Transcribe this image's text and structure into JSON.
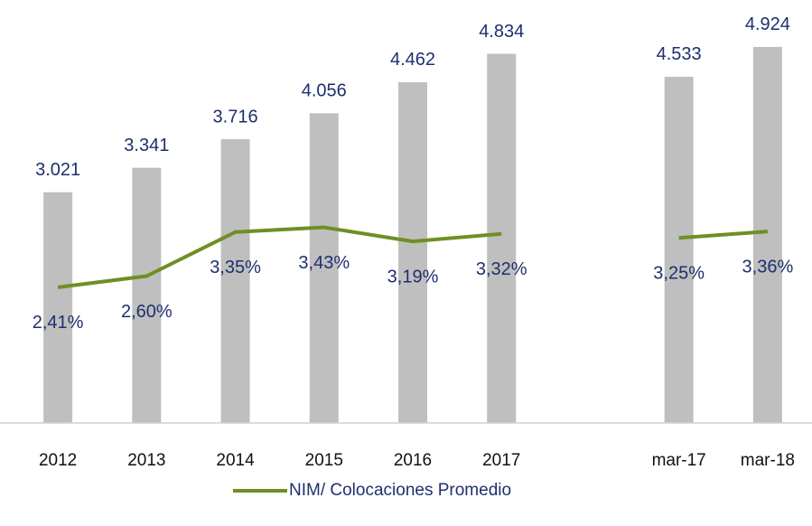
{
  "chart_data": {
    "type": "bar-line",
    "categories": [
      "2012",
      "2013",
      "2014",
      "2015",
      "2016",
      "2017",
      null,
      "mar-17",
      "mar-18"
    ],
    "series": [
      {
        "type": "bar",
        "color": "#bfbfbf",
        "values": [
          3021,
          3341,
          3716,
          4056,
          4462,
          4834,
          null,
          4533,
          4924
        ],
        "value_labels": [
          "3.021",
          "3.341",
          "3.716",
          "4.056",
          "4.462",
          "4.834",
          null,
          "4.533",
          "4.924"
        ]
      },
      {
        "type": "line",
        "name": "NIM/ Colocaciones Promedio",
        "color": "#6f8f24",
        "axis": "y2",
        "values": [
          2.41,
          2.6,
          3.35,
          3.43,
          3.19,
          3.32,
          null,
          3.25,
          3.36
        ],
        "value_labels": [
          "2,41%",
          "2,60%",
          "3,35%",
          "3,43%",
          "3,19%",
          "3,32%",
          null,
          "3,25%",
          "3,36%"
        ]
      }
    ],
    "ylim": [
      0,
      5000
    ],
    "y2lim": [
      0.1,
      6.6
    ],
    "legend": "bottom"
  }
}
